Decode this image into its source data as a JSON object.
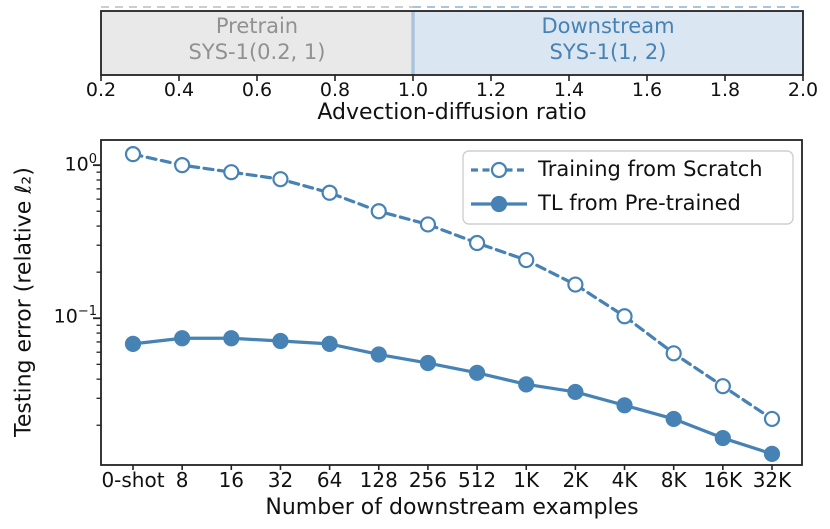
{
  "accent_color": "#4682b4",
  "chart_data": [
    {
      "type": "area",
      "xlabel": "Advection-diffusion ratio",
      "xlim": [
        0.2,
        2.0
      ],
      "xticks": [
        "0.2",
        "0.4",
        "0.6",
        "0.8",
        "1.0",
        "1.2",
        "1.4",
        "1.6",
        "1.8",
        "2.0"
      ],
      "regions": [
        {
          "line1": "Pretrain",
          "line2": "SYS-1(0.2, 1)",
          "from": 0.2,
          "to": 1.0,
          "fill": "#e9e9e9",
          "text_color": "#919191",
          "edge_color": "#cdcdcd"
        },
        {
          "line1": "Downstream",
          "line2": "SYS-1(1, 2)",
          "from": 1.0,
          "to": 2.0,
          "fill": "#dbe6f3",
          "text_color": "#4682b4",
          "edge_color": "#aac4de"
        }
      ]
    },
    {
      "type": "line",
      "title": "",
      "xlabel": "Number of downstream examples",
      "ylabel": "Testing error (relative ℓ₂)",
      "yscale": "log",
      "ylim": [
        0.011,
        1.46
      ],
      "grid": false,
      "categories": [
        "0-shot",
        "8",
        "16",
        "32",
        "64",
        "128",
        "256",
        "512",
        "1K",
        "2K",
        "4K",
        "8K",
        "16K",
        "32K"
      ],
      "y_major_ticks": [
        {
          "value": 1.0,
          "base": "10",
          "exp": "0"
        },
        {
          "value": 0.1,
          "base": "10",
          "exp": "−1"
        }
      ],
      "series": [
        {
          "name": "Training from Scratch",
          "line_style": "dashed",
          "marker": "open-circle",
          "color": "#4682b4",
          "values": [
            1.18,
            1.0,
            0.9,
            0.81,
            0.66,
            0.5,
            0.41,
            0.31,
            0.24,
            0.166,
            0.103,
            0.059,
            0.036,
            0.022
          ]
        },
        {
          "name": "TL from Pre-trained",
          "line_style": "solid",
          "marker": "filled-circle",
          "color": "#4682b4",
          "values": [
            0.068,
            0.074,
            0.074,
            0.071,
            0.068,
            0.058,
            0.051,
            0.044,
            0.037,
            0.033,
            0.027,
            0.022,
            0.0165,
            0.013
          ]
        }
      ],
      "legend": {
        "position": "upper right",
        "entries": [
          "Training from Scratch",
          "TL from Pre-trained"
        ]
      }
    }
  ]
}
